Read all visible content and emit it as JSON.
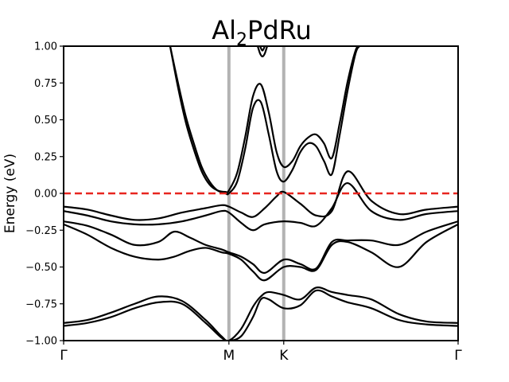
{
  "chart_data": {
    "type": "line",
    "title": {
      "main": "Al",
      "sub": "2",
      "rest": "PdRu"
    },
    "xlabel": "",
    "ylabel": "Energy (eV)",
    "ylim": [
      -1.0,
      1.0
    ],
    "xlim": [
      0,
      1
    ],
    "yticks": [
      {
        "value": -1.0,
        "label": "−1.00"
      },
      {
        "value": -0.75,
        "label": "−0.75"
      },
      {
        "value": -0.5,
        "label": "−0.50"
      },
      {
        "value": -0.25,
        "label": "−0.25"
      },
      {
        "value": 0.0,
        "label": "0.00"
      },
      {
        "value": 0.25,
        "label": "0.25"
      },
      {
        "value": 0.5,
        "label": "0.50"
      },
      {
        "value": 0.75,
        "label": "0.75"
      },
      {
        "value": 1.0,
        "label": "1.00"
      }
    ],
    "kpoints": [
      {
        "label": "Γ",
        "x": 0.0,
        "marker": false
      },
      {
        "label": "M",
        "x": 0.419,
        "marker": true
      },
      {
        "label": "K",
        "x": 0.558,
        "marker": true
      },
      {
        "label": "Γ",
        "x": 1.0,
        "marker": false
      }
    ],
    "fermi_level": {
      "value": 0.0,
      "color": "#e8251f"
    },
    "colors": {
      "bands": "#000000",
      "kpoint_lines": "#b3b3b3",
      "axes": "#000000"
    },
    "grid": false,
    "series": [
      {
        "x": [
          0.0,
          0.06,
          0.12,
          0.18,
          0.24,
          0.3,
          0.36,
          0.4,
          0.419,
          0.45,
          0.48,
          0.5,
          0.52,
          0.558,
          0.6,
          0.64,
          0.68,
          0.72,
          0.78,
          0.85,
          0.92,
          1.0
        ],
        "y": [
          -0.88,
          -0.86,
          -0.81,
          -0.75,
          -0.7,
          -0.73,
          -0.86,
          -0.97,
          -1.0,
          -0.92,
          -0.77,
          -0.7,
          -0.67,
          -0.69,
          -0.72,
          -0.64,
          -0.67,
          -0.69,
          -0.72,
          -0.82,
          -0.87,
          -0.88
        ]
      },
      {
        "x": [
          0.0,
          0.06,
          0.12,
          0.18,
          0.24,
          0.3,
          0.36,
          0.4,
          0.419,
          0.45,
          0.48,
          0.5,
          0.52,
          0.558,
          0.6,
          0.64,
          0.68,
          0.72,
          0.78,
          0.85,
          0.92,
          1.0
        ],
        "y": [
          -0.9,
          -0.88,
          -0.84,
          -0.78,
          -0.74,
          -0.75,
          -0.88,
          -0.98,
          -1.0,
          -0.97,
          -0.84,
          -0.72,
          -0.72,
          -0.78,
          -0.76,
          -0.66,
          -0.7,
          -0.74,
          -0.78,
          -0.86,
          -0.89,
          -0.9
        ]
      },
      {
        "x": [
          0.0,
          0.06,
          0.12,
          0.18,
          0.24,
          0.28,
          0.32,
          0.36,
          0.4,
          0.419,
          0.45,
          0.48,
          0.51,
          0.558,
          0.6,
          0.64,
          0.68,
          0.72,
          0.78,
          0.85,
          0.92,
          1.0
        ],
        "y": [
          -0.21,
          -0.28,
          -0.37,
          -0.43,
          -0.45,
          -0.43,
          -0.39,
          -0.37,
          -0.4,
          -0.41,
          -0.45,
          -0.53,
          -0.59,
          -0.5,
          -0.5,
          -0.52,
          -0.35,
          -0.33,
          -0.4,
          -0.5,
          -0.33,
          -0.21
        ]
      },
      {
        "x": [
          0.0,
          0.06,
          0.12,
          0.18,
          0.24,
          0.28,
          0.32,
          0.36,
          0.4,
          0.419,
          0.45,
          0.48,
          0.51,
          0.558,
          0.6,
          0.64,
          0.68,
          0.72,
          0.78,
          0.85,
          0.92,
          1.0
        ],
        "y": [
          -0.19,
          -0.22,
          -0.28,
          -0.35,
          -0.33,
          -0.26,
          -0.3,
          -0.35,
          -0.38,
          -0.4,
          -0.43,
          -0.48,
          -0.54,
          -0.45,
          -0.48,
          -0.51,
          -0.33,
          -0.32,
          -0.32,
          -0.35,
          -0.26,
          -0.19
        ]
      },
      {
        "x": [
          0.0,
          0.06,
          0.12,
          0.18,
          0.24,
          0.3,
          0.36,
          0.4,
          0.419,
          0.45,
          0.48,
          0.51,
          0.558,
          0.6,
          0.64,
          0.68,
          0.72,
          0.78,
          0.85,
          0.92,
          1.0
        ],
        "y": [
          -0.12,
          -0.15,
          -0.19,
          -0.21,
          -0.21,
          -0.19,
          -0.15,
          -0.12,
          -0.13,
          -0.2,
          -0.25,
          -0.21,
          -0.19,
          -0.2,
          -0.22,
          -0.1,
          0.07,
          -0.12,
          -0.18,
          -0.14,
          -0.12
        ]
      },
      {
        "x": [
          0.0,
          0.06,
          0.12,
          0.18,
          0.24,
          0.3,
          0.36,
          0.4,
          0.419,
          0.45,
          0.48,
          0.51,
          0.54,
          0.558,
          0.6,
          0.64,
          0.68,
          0.72,
          0.78,
          0.85,
          0.92,
          1.0
        ],
        "y": [
          -0.09,
          -0.11,
          -0.15,
          -0.18,
          -0.17,
          -0.13,
          -0.1,
          -0.08,
          -0.09,
          -0.13,
          -0.16,
          -0.1,
          -0.02,
          0.01,
          -0.07,
          -0.15,
          -0.12,
          0.15,
          -0.05,
          -0.14,
          -0.11,
          -0.09
        ]
      },
      {
        "x": [
          0.27,
          0.29,
          0.31,
          0.33,
          0.35,
          0.37,
          0.39,
          0.41,
          0.419,
          0.44,
          0.46,
          0.48,
          0.5,
          0.52,
          0.54,
          0.558,
          0.58,
          0.6,
          0.62,
          0.64,
          0.66,
          0.68,
          0.7,
          0.72,
          0.74,
          0.75
        ],
        "y": [
          1.0,
          0.75,
          0.52,
          0.34,
          0.18,
          0.08,
          0.02,
          0.0,
          0.0,
          0.08,
          0.3,
          0.58,
          0.62,
          0.4,
          0.15,
          0.08,
          0.16,
          0.28,
          0.34,
          0.32,
          0.22,
          0.13,
          0.4,
          0.7,
          0.95,
          1.0
        ]
      },
      {
        "x": [
          0.27,
          0.29,
          0.31,
          0.33,
          0.35,
          0.37,
          0.39,
          0.41,
          0.419,
          0.44,
          0.46,
          0.48,
          0.5,
          0.52,
          0.54,
          0.558,
          0.58,
          0.6,
          0.62,
          0.64,
          0.66,
          0.68,
          0.7,
          0.72,
          0.74,
          0.75
        ],
        "y": [
          1.0,
          0.72,
          0.48,
          0.3,
          0.15,
          0.06,
          0.02,
          0.01,
          0.02,
          0.14,
          0.38,
          0.66,
          0.74,
          0.55,
          0.28,
          0.18,
          0.22,
          0.32,
          0.38,
          0.4,
          0.34,
          0.24,
          0.48,
          0.76,
          0.97,
          1.0
        ]
      },
      {
        "x": [
          0.492,
          0.498,
          0.504,
          0.51,
          0.516
        ],
        "y": [
          1.0,
          0.95,
          0.93,
          0.95,
          1.0
        ]
      },
      {
        "x": [
          0.498,
          0.504,
          0.51
        ],
        "y": [
          1.0,
          0.97,
          1.0
        ]
      }
    ]
  }
}
